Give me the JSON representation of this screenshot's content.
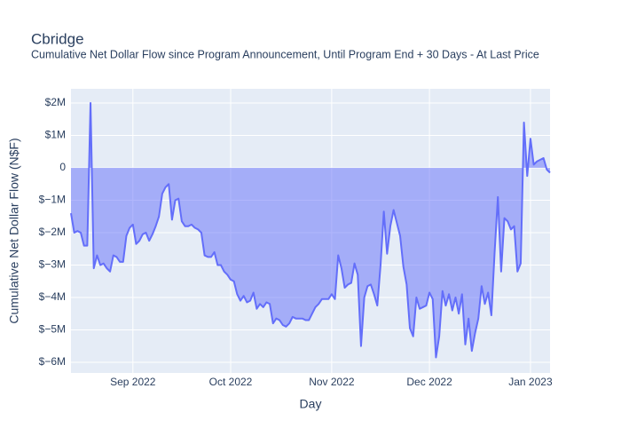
{
  "chart_data": {
    "type": "area",
    "title": "Cbridge",
    "subtitle": "Cumulative Net Dollar Flow since Program Announcement, Until Program End + 30 Days - At Last Price",
    "xlabel": "Day",
    "ylabel": "Cumulative Net Dollar Flow (N$F)",
    "color": "#636efa",
    "grid": true,
    "ylim": [
      -6.33,
      2.44
    ],
    "yticks": [
      {
        "value": -6,
        "label": "$−6M"
      },
      {
        "value": -5,
        "label": "$−5M"
      },
      {
        "value": -4,
        "label": "$−4M"
      },
      {
        "value": -3,
        "label": "$−3M"
      },
      {
        "value": -2,
        "label": "$−2M"
      },
      {
        "value": -1,
        "label": "$−1M"
      },
      0,
      {
        "value": 1,
        "label": "$1M"
      },
      {
        "value": 2,
        "label": "$2M"
      }
    ],
    "categories": [
      null,
      null,
      null,
      null,
      null,
      null,
      null,
      null,
      null,
      null,
      null,
      null,
      null,
      null,
      null,
      null,
      null,
      null,
      null,
      "Sep 2022",
      null,
      null,
      null,
      null,
      null,
      null,
      null,
      null,
      null,
      null,
      null,
      null,
      null,
      null,
      null,
      null,
      null,
      null,
      null,
      null,
      null,
      null,
      null,
      null,
      null,
      null,
      null,
      null,
      null,
      "Oct 2022",
      null,
      null,
      null,
      null,
      null,
      null,
      null,
      null,
      null,
      null,
      null,
      null,
      null,
      null,
      null,
      null,
      null,
      null,
      null,
      null,
      null,
      null,
      null,
      null,
      null,
      null,
      null,
      null,
      null,
      null,
      "Nov 2022",
      null,
      null,
      null,
      null,
      null,
      null,
      null,
      null,
      null,
      null,
      null,
      null,
      null,
      null,
      null,
      null,
      null,
      null,
      null,
      null,
      null,
      null,
      null,
      null,
      null,
      null,
      null,
      null,
      null,
      "Dec 2022",
      null,
      null,
      null,
      null,
      null,
      null,
      null,
      null,
      null,
      null,
      null,
      null,
      null,
      null,
      null,
      null,
      null,
      null,
      null,
      null,
      null,
      null,
      null,
      null,
      null,
      null,
      null,
      null,
      null,
      null,
      "Jan 2023",
      null,
      null,
      null,
      null,
      null,
      null
    ],
    "values": [
      -1.4,
      -2.0,
      -1.95,
      -2.0,
      -2.4,
      -2.4,
      2.0,
      -3.1,
      -2.7,
      -3.0,
      -2.95,
      -3.1,
      -3.2,
      -2.7,
      -2.75,
      -2.9,
      -2.9,
      -2.1,
      -1.85,
      -1.75,
      -2.35,
      -2.25,
      -2.05,
      -2.0,
      -2.25,
      -2.05,
      -1.8,
      -1.5,
      -0.8,
      -0.6,
      -0.5,
      -1.6,
      -1.0,
      -0.95,
      -1.65,
      -1.8,
      -1.8,
      -1.75,
      -1.85,
      -1.9,
      -2.0,
      -2.7,
      -2.75,
      -2.75,
      -2.6,
      -3.0,
      -3.0,
      -3.2,
      -3.3,
      -3.45,
      -3.5,
      -3.9,
      -4.1,
      -3.95,
      -4.15,
      -4.1,
      -3.85,
      -4.35,
      -4.2,
      -4.3,
      -4.15,
      -4.2,
      -4.8,
      -4.65,
      -4.7,
      -4.85,
      -4.9,
      -4.8,
      -4.6,
      -4.65,
      -4.65,
      -4.65,
      -4.7,
      -4.7,
      -4.5,
      -4.3,
      -4.2,
      -4.05,
      -4.05,
      -4.05,
      -3.9,
      -4.05,
      -2.7,
      -3.1,
      -3.7,
      -3.6,
      -3.55,
      -2.95,
      -3.3,
      -5.5,
      -4.0,
      -3.65,
      -3.6,
      -3.9,
      -4.25,
      -3.0,
      -1.35,
      -2.65,
      -1.8,
      -1.3,
      -1.7,
      -2.1,
      -3.05,
      -3.6,
      -4.95,
      -5.2,
      -4.0,
      -4.35,
      -4.3,
      -4.25,
      -3.85,
      -4.05,
      -5.85,
      -5.2,
      -3.8,
      -4.25,
      -3.9,
      -4.4,
      -4.0,
      -4.5,
      -3.9,
      -5.45,
      -4.65,
      -5.65,
      -5.1,
      -4.65,
      -3.65,
      -4.2,
      -3.85,
      -4.55,
      -2.6,
      -0.9,
      -3.2,
      -1.55,
      -1.65,
      -1.9,
      -1.8,
      -3.2,
      -2.95,
      1.4,
      -0.25,
      0.9,
      0.1,
      0.2,
      0.25,
      0.3,
      -0.05,
      -0.15
    ]
  }
}
